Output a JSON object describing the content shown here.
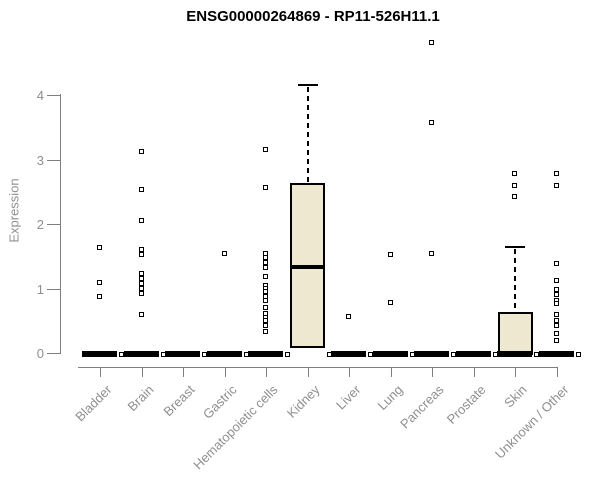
{
  "title": "ENSG00000264869 - RP11-526H11.1",
  "colors": {
    "box_fill": "#EDE8CF",
    "box_border": "#000000",
    "axis": "#7f7f7f",
    "axis_text": "#8f8f8f",
    "title_text": "#000000"
  },
  "chart_data": {
    "type": "boxplot",
    "title": "ENSG00000264869 - RP11-526H11.1",
    "xlabel": "",
    "ylabel": "Expression",
    "ylim": [
      0,
      4.9
    ],
    "yticks": [
      0,
      1,
      2,
      3,
      4
    ],
    "grid": false,
    "legend": false,
    "categories": [
      "Bladder",
      "Brain",
      "Breast",
      "Gastric",
      "Hematopoietic cells",
      "Kidney",
      "Liver",
      "Lung",
      "Pancreas",
      "Prostate",
      "Skin",
      "Unknown / Other"
    ],
    "series": [
      {
        "name": "Bladder",
        "whisker_low": 0,
        "q1": 0,
        "median": 0,
        "q3": 0,
        "whisker_high": 0,
        "outliers": [
          1.63,
          1.1,
          0.87
        ],
        "zero_outlier": true
      },
      {
        "name": "Brain",
        "whisker_low": 0,
        "q1": 0,
        "median": 0,
        "q3": 0,
        "whisker_high": 0,
        "outliers": [
          3.12,
          2.53,
          2.06,
          1.6,
          1.52,
          1.24,
          1.16,
          1.08,
          1.0,
          0.93,
          0.59
        ],
        "zero_outlier": true
      },
      {
        "name": "Breast",
        "whisker_low": 0,
        "q1": 0,
        "median": 0,
        "q3": 0,
        "whisker_high": 0,
        "outliers": [],
        "zero_outlier": true
      },
      {
        "name": "Gastric",
        "whisker_low": 0,
        "q1": 0,
        "median": 0,
        "q3": 0,
        "whisker_high": 0,
        "outliers": [
          1.55
        ],
        "zero_outlier": true
      },
      {
        "name": "Hematopoietic cells",
        "whisker_low": 0,
        "q1": 0,
        "median": 0,
        "q3": 0,
        "whisker_high": 0,
        "outliers": [
          3.15,
          2.57,
          1.55,
          1.48,
          1.4,
          1.33,
          1.18,
          1.05,
          1.0,
          0.95,
          0.88,
          0.82,
          0.7,
          0.62,
          0.55,
          0.51,
          0.43,
          0.34
        ],
        "zero_outlier": true
      },
      {
        "name": "Kidney",
        "whisker_low": 0.08,
        "q1": 0.08,
        "median": 1.33,
        "q3": 2.64,
        "whisker_high": 4.15,
        "outliers": [],
        "zero_outlier": true
      },
      {
        "name": "Liver",
        "whisker_low": 0,
        "q1": 0,
        "median": 0,
        "q3": 0,
        "whisker_high": 0,
        "outliers": [
          0.57
        ],
        "zero_outlier": true
      },
      {
        "name": "Lung",
        "whisker_low": 0,
        "q1": 0,
        "median": 0,
        "q3": 0,
        "whisker_high": 0,
        "outliers": [
          1.52,
          0.78
        ],
        "zero_outlier": true
      },
      {
        "name": "Pancreas",
        "whisker_low": 0,
        "q1": 0,
        "median": 0,
        "q3": 0,
        "whisker_high": 0,
        "outliers": [
          4.82,
          3.57,
          1.55
        ],
        "zero_outlier": true
      },
      {
        "name": "Prostate",
        "whisker_low": 0,
        "q1": 0,
        "median": 0,
        "q3": 0,
        "whisker_high": 0,
        "outliers": [],
        "zero_outlier": true
      },
      {
        "name": "Skin",
        "whisker_low": 0,
        "q1": 0,
        "median": 0,
        "q3": 0.64,
        "whisker_high": 1.64,
        "outliers": [
          2.79,
          2.6,
          2.42
        ],
        "zero_outlier": true
      },
      {
        "name": "Unknown / Other",
        "whisker_low": 0,
        "q1": 0,
        "median": 0,
        "q3": 0,
        "whisker_high": 0,
        "outliers": [
          2.79,
          2.6,
          1.39,
          1.13,
          0.99,
          0.91,
          0.82,
          0.76,
          0.59,
          0.51,
          0.42,
          0.31,
          0.19
        ],
        "zero_outlier": true
      }
    ]
  }
}
